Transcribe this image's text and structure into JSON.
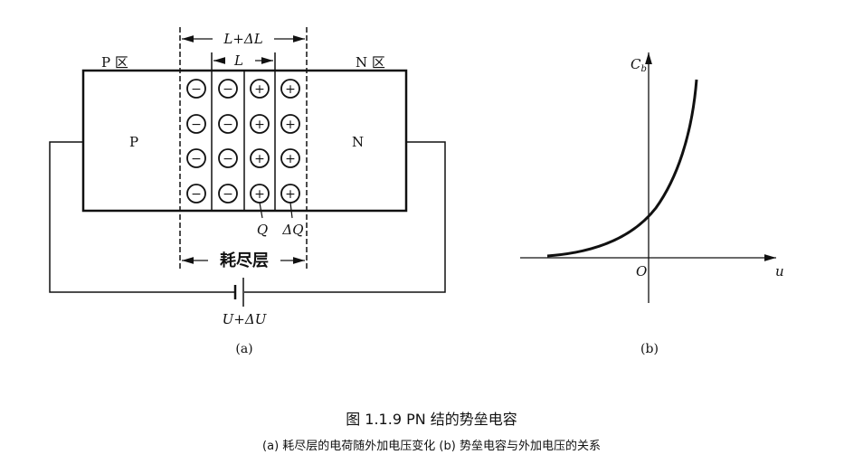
{
  "figure_a": {
    "p_region_label": "P 区",
    "n_region_label": "N 区",
    "p_label": "P",
    "n_label": "N",
    "width_outer_label": "L+ΔL",
    "width_inner_label": "L",
    "charge_label": "Q",
    "delta_charge_label": "ΔQ",
    "depletion_label": "耗尽层",
    "voltage_label": "U+ΔU",
    "sublabel": "(a)",
    "negative_sign": "−",
    "positive_sign": "+"
  },
  "figure_b": {
    "y_axis_label": "C",
    "y_axis_subscript": "b",
    "origin_label": "O",
    "x_axis_label": "u",
    "sublabel": "(b)"
  },
  "caption": {
    "title": "图 1.1.9   PN 结的势垒电容",
    "subtitle": "(a) 耗尽层的电荷随外加电压变化  (b) 势垒电容与外加电压的关系"
  }
}
